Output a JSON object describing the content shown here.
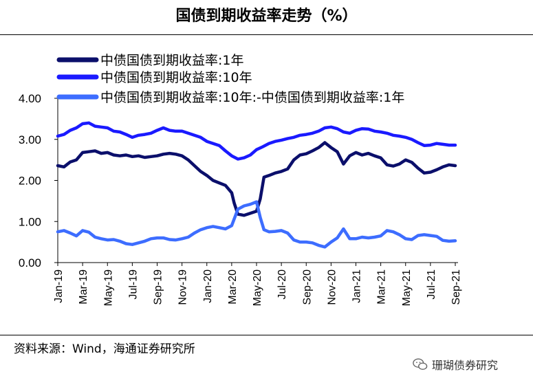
{
  "title": "国债到期收益率走势（%）",
  "source": "资料来源：Wind，海通证券研究所",
  "watermark": "珊瑚债券研究",
  "chart_data": {
    "type": "line",
    "y_ticks": [
      "0.00",
      "1.00",
      "2.00",
      "3.00",
      "4.00"
    ],
    "ylim": [
      0,
      4
    ],
    "x_tick_labels": [
      "Jan-19",
      "Mar-19",
      "May-19",
      "Jul-19",
      "Sep-19",
      "Nov-19",
      "Jan-20",
      "Mar-20",
      "May-20",
      "Jul-20",
      "Sep-20",
      "Nov-20",
      "Jan-21",
      "Mar-21",
      "May-21",
      "Jul-21",
      "Sep-21"
    ],
    "legend": [
      {
        "label": "中债国债到期收益率:1年",
        "color": "#0b0f6b"
      },
      {
        "label": "中债国债到期收益率:10年",
        "color": "#1a1aff"
      },
      {
        "label": "中债国债到期收益率:10年:-中债国债到期收益率:1年",
        "color": "#3d6dff"
      }
    ],
    "series": [
      {
        "name": "中债国债到期收益率:1年",
        "color": "#0b0f6b",
        "points": [
          [
            0,
            2.36
          ],
          [
            0.5,
            2.33
          ],
          [
            1,
            2.45
          ],
          [
            1.5,
            2.5
          ],
          [
            2,
            2.68
          ],
          [
            2.5,
            2.7
          ],
          [
            3,
            2.72
          ],
          [
            3.5,
            2.66
          ],
          [
            4,
            2.68
          ],
          [
            4.5,
            2.62
          ],
          [
            5,
            2.6
          ],
          [
            5.5,
            2.62
          ],
          [
            6,
            2.58
          ],
          [
            6.5,
            2.6
          ],
          [
            7,
            2.56
          ],
          [
            7.5,
            2.58
          ],
          [
            8,
            2.6
          ],
          [
            8.5,
            2.64
          ],
          [
            9,
            2.66
          ],
          [
            9.5,
            2.64
          ],
          [
            10,
            2.6
          ],
          [
            10.5,
            2.5
          ],
          [
            11,
            2.36
          ],
          [
            11.5,
            2.22
          ],
          [
            12,
            2.12
          ],
          [
            12.5,
            2.0
          ],
          [
            13,
            1.94
          ],
          [
            13.5,
            1.88
          ],
          [
            14,
            1.7
          ],
          [
            14.2,
            1.45
          ],
          [
            14.5,
            1.18
          ],
          [
            15,
            1.15
          ],
          [
            15.5,
            1.2
          ],
          [
            16,
            1.25
          ],
          [
            16.3,
            1.55
          ],
          [
            16.6,
            2.08
          ],
          [
            17,
            2.12
          ],
          [
            17.5,
            2.18
          ],
          [
            18,
            2.22
          ],
          [
            18.5,
            2.28
          ],
          [
            19,
            2.5
          ],
          [
            19.5,
            2.62
          ],
          [
            20,
            2.65
          ],
          [
            20.5,
            2.72
          ],
          [
            21,
            2.8
          ],
          [
            21.5,
            2.92
          ],
          [
            22,
            2.8
          ],
          [
            22.5,
            2.7
          ],
          [
            23,
            2.4
          ],
          [
            23.5,
            2.6
          ],
          [
            24,
            2.68
          ],
          [
            24.5,
            2.62
          ],
          [
            25,
            2.66
          ],
          [
            25.5,
            2.6
          ],
          [
            26,
            2.55
          ],
          [
            26.5,
            2.38
          ],
          [
            27,
            2.35
          ],
          [
            27.5,
            2.4
          ],
          [
            28,
            2.5
          ],
          [
            28.5,
            2.44
          ],
          [
            29,
            2.3
          ],
          [
            29.5,
            2.18
          ],
          [
            30,
            2.2
          ],
          [
            30.5,
            2.26
          ],
          [
            31,
            2.33
          ],
          [
            31.5,
            2.38
          ],
          [
            32,
            2.36
          ]
        ]
      },
      {
        "name": "中债国债到期收益率:10年",
        "color": "#1a1aff",
        "points": [
          [
            0,
            3.08
          ],
          [
            0.5,
            3.12
          ],
          [
            1,
            3.22
          ],
          [
            1.5,
            3.28
          ],
          [
            2,
            3.38
          ],
          [
            2.5,
            3.4
          ],
          [
            3,
            3.32
          ],
          [
            3.5,
            3.3
          ],
          [
            4,
            3.28
          ],
          [
            4.5,
            3.2
          ],
          [
            5,
            3.18
          ],
          [
            5.5,
            3.12
          ],
          [
            6,
            3.05
          ],
          [
            6.5,
            3.1
          ],
          [
            7,
            3.12
          ],
          [
            7.5,
            3.15
          ],
          [
            8,
            3.22
          ],
          [
            8.5,
            3.28
          ],
          [
            9,
            3.22
          ],
          [
            9.5,
            3.2
          ],
          [
            10,
            3.2
          ],
          [
            10.5,
            3.15
          ],
          [
            11,
            3.1
          ],
          [
            11.5,
            3.05
          ],
          [
            12,
            2.95
          ],
          [
            12.5,
            2.9
          ],
          [
            13,
            2.85
          ],
          [
            13.5,
            2.72
          ],
          [
            14,
            2.6
          ],
          [
            14.5,
            2.52
          ],
          [
            15,
            2.55
          ],
          [
            15.5,
            2.62
          ],
          [
            16,
            2.75
          ],
          [
            16.5,
            2.82
          ],
          [
            17,
            2.9
          ],
          [
            17.5,
            2.95
          ],
          [
            18,
            2.98
          ],
          [
            18.5,
            3.02
          ],
          [
            19,
            3.05
          ],
          [
            19.5,
            3.1
          ],
          [
            20,
            3.12
          ],
          [
            20.5,
            3.15
          ],
          [
            21,
            3.2
          ],
          [
            21.5,
            3.28
          ],
          [
            22,
            3.3
          ],
          [
            22.5,
            3.26
          ],
          [
            23,
            3.18
          ],
          [
            23.5,
            3.15
          ],
          [
            24,
            3.22
          ],
          [
            24.5,
            3.26
          ],
          [
            25,
            3.25
          ],
          [
            25.5,
            3.2
          ],
          [
            26,
            3.18
          ],
          [
            26.5,
            3.15
          ],
          [
            27,
            3.1
          ],
          [
            27.5,
            3.08
          ],
          [
            28,
            3.05
          ],
          [
            28.5,
            3.0
          ],
          [
            29,
            2.92
          ],
          [
            29.5,
            2.85
          ],
          [
            30,
            2.86
          ],
          [
            30.5,
            2.9
          ],
          [
            31,
            2.88
          ],
          [
            31.5,
            2.86
          ],
          [
            32,
            2.86
          ]
        ]
      },
      {
        "name": "中债国债到期收益率:10年:-中债国债到期收益率:1年",
        "color": "#3d6dff",
        "points": [
          [
            0,
            0.75
          ],
          [
            0.5,
            0.78
          ],
          [
            1,
            0.72
          ],
          [
            1.5,
            0.65
          ],
          [
            2,
            0.78
          ],
          [
            2.5,
            0.74
          ],
          [
            3,
            0.62
          ],
          [
            3.5,
            0.58
          ],
          [
            4,
            0.55
          ],
          [
            4.5,
            0.56
          ],
          [
            5,
            0.52
          ],
          [
            5.5,
            0.46
          ],
          [
            6,
            0.44
          ],
          [
            6.5,
            0.48
          ],
          [
            7,
            0.52
          ],
          [
            7.5,
            0.58
          ],
          [
            8,
            0.6
          ],
          [
            8.5,
            0.6
          ],
          [
            9,
            0.56
          ],
          [
            9.5,
            0.55
          ],
          [
            10,
            0.58
          ],
          [
            10.5,
            0.62
          ],
          [
            11,
            0.72
          ],
          [
            11.5,
            0.8
          ],
          [
            12,
            0.85
          ],
          [
            12.5,
            0.88
          ],
          [
            13,
            0.85
          ],
          [
            13.5,
            0.82
          ],
          [
            14,
            0.9
          ],
          [
            14.5,
            1.3
          ],
          [
            15,
            1.38
          ],
          [
            15.5,
            1.42
          ],
          [
            16,
            1.48
          ],
          [
            16.3,
            1.1
          ],
          [
            16.6,
            0.8
          ],
          [
            17,
            0.75
          ],
          [
            17.5,
            0.76
          ],
          [
            18,
            0.78
          ],
          [
            18.5,
            0.72
          ],
          [
            19,
            0.55
          ],
          [
            19.5,
            0.5
          ],
          [
            20,
            0.5
          ],
          [
            20.5,
            0.48
          ],
          [
            21,
            0.42
          ],
          [
            21.5,
            0.38
          ],
          [
            22,
            0.5
          ],
          [
            22.5,
            0.6
          ],
          [
            23,
            0.82
          ],
          [
            23.5,
            0.58
          ],
          [
            24,
            0.58
          ],
          [
            24.5,
            0.62
          ],
          [
            25,
            0.6
          ],
          [
            25.5,
            0.62
          ],
          [
            26,
            0.65
          ],
          [
            26.5,
            0.78
          ],
          [
            27,
            0.75
          ],
          [
            27.5,
            0.68
          ],
          [
            28,
            0.58
          ],
          [
            28.5,
            0.56
          ],
          [
            29,
            0.66
          ],
          [
            29.5,
            0.68
          ],
          [
            30,
            0.66
          ],
          [
            30.5,
            0.64
          ],
          [
            31,
            0.54
          ],
          [
            31.5,
            0.52
          ],
          [
            32,
            0.53
          ]
        ]
      }
    ]
  }
}
